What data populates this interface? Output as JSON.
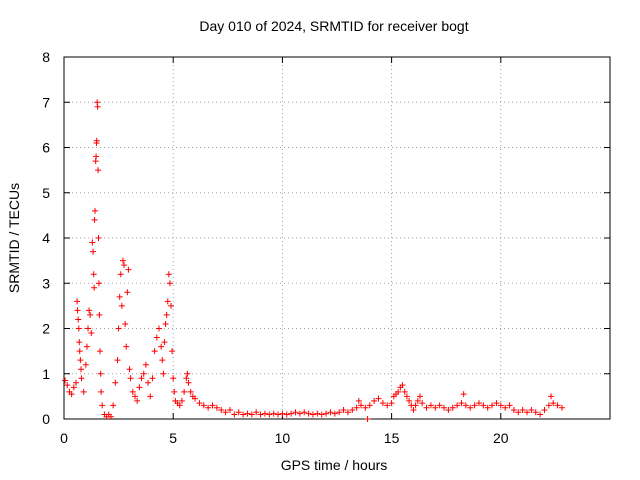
{
  "chart_data": {
    "type": "scatter",
    "title": "Day 010 of 2024, SRMTID for receiver bogt",
    "xlabel": "GPS time / hours",
    "ylabel": "SRMTID / TECUs",
    "xlim": [
      0,
      25
    ],
    "ylim": [
      0,
      8
    ],
    "xticks": [
      0,
      5,
      10,
      15,
      20
    ],
    "yticks": [
      0,
      1,
      2,
      3,
      4,
      5,
      6,
      7,
      8
    ],
    "xtick_labels": [
      "0",
      "5",
      "10",
      "15",
      "20"
    ],
    "ytick_labels": [
      "0",
      "1",
      "2",
      "3",
      "4",
      "5",
      "6",
      "7",
      "8"
    ],
    "grid": true,
    "marker": "+",
    "color": "#ff0000",
    "series": [
      {
        "name": "SRMTID",
        "points": [
          [
            0.05,
            0.85
          ],
          [
            0.15,
            0.75
          ],
          [
            0.25,
            0.6
          ],
          [
            0.35,
            0.55
          ],
          [
            0.45,
            0.7
          ],
          [
            0.55,
            0.8
          ],
          [
            0.6,
            2.6
          ],
          [
            0.62,
            2.4
          ],
          [
            0.65,
            2.2
          ],
          [
            0.68,
            2.0
          ],
          [
            0.7,
            1.7
          ],
          [
            0.72,
            1.5
          ],
          [
            0.75,
            1.3
          ],
          [
            0.78,
            1.1
          ],
          [
            0.8,
            0.9
          ],
          [
            0.9,
            0.6
          ],
          [
            1.0,
            1.2
          ],
          [
            1.05,
            1.6
          ],
          [
            1.1,
            2.0
          ],
          [
            1.15,
            2.4
          ],
          [
            1.2,
            2.3
          ],
          [
            1.25,
            1.9
          ],
          [
            1.3,
            3.9
          ],
          [
            1.33,
            3.7
          ],
          [
            1.36,
            3.2
          ],
          [
            1.38,
            2.9
          ],
          [
            1.4,
            4.4
          ],
          [
            1.42,
            4.6
          ],
          [
            1.45,
            5.7
          ],
          [
            1.47,
            5.8
          ],
          [
            1.49,
            6.1
          ],
          [
            1.5,
            6.15
          ],
          [
            1.52,
            7.0
          ],
          [
            1.54,
            6.9
          ],
          [
            1.56,
            5.5
          ],
          [
            1.58,
            4.0
          ],
          [
            1.6,
            3.0
          ],
          [
            1.62,
            2.3
          ],
          [
            1.65,
            1.5
          ],
          [
            1.68,
            1.0
          ],
          [
            1.7,
            0.6
          ],
          [
            1.75,
            0.3
          ],
          [
            1.85,
            0.1
          ],
          [
            1.95,
            0.05
          ],
          [
            2.05,
            0.1
          ],
          [
            2.15,
            0.05
          ],
          [
            2.25,
            0.3
          ],
          [
            2.35,
            0.8
          ],
          [
            2.45,
            1.3
          ],
          [
            2.5,
            2.0
          ],
          [
            2.55,
            2.7
          ],
          [
            2.6,
            3.2
          ],
          [
            2.65,
            2.5
          ],
          [
            2.7,
            3.5
          ],
          [
            2.75,
            3.4
          ],
          [
            2.8,
            2.1
          ],
          [
            2.85,
            1.6
          ],
          [
            2.9,
            2.8
          ],
          [
            2.95,
            3.3
          ],
          [
            3.0,
            1.1
          ],
          [
            3.05,
            0.9
          ],
          [
            3.15,
            0.6
          ],
          [
            3.25,
            0.5
          ],
          [
            3.35,
            0.4
          ],
          [
            3.45,
            0.7
          ],
          [
            3.55,
            0.9
          ],
          [
            3.65,
            1.0
          ],
          [
            3.75,
            1.2
          ],
          [
            3.85,
            0.8
          ],
          [
            3.95,
            0.5
          ],
          [
            4.05,
            0.9
          ],
          [
            4.15,
            1.5
          ],
          [
            4.25,
            1.8
          ],
          [
            4.35,
            2.0
          ],
          [
            4.45,
            1.6
          ],
          [
            4.5,
            1.3
          ],
          [
            4.55,
            1.0
          ],
          [
            4.6,
            1.7
          ],
          [
            4.65,
            2.1
          ],
          [
            4.7,
            2.3
          ],
          [
            4.75,
            2.6
          ],
          [
            4.8,
            3.2
          ],
          [
            4.85,
            3.0
          ],
          [
            4.9,
            2.5
          ],
          [
            4.95,
            1.5
          ],
          [
            5.0,
            0.9
          ],
          [
            5.05,
            0.6
          ],
          [
            5.1,
            0.4
          ],
          [
            5.2,
            0.35
          ],
          [
            5.3,
            0.3
          ],
          [
            5.4,
            0.4
          ],
          [
            5.5,
            0.6
          ],
          [
            5.6,
            0.9
          ],
          [
            5.65,
            1.0
          ],
          [
            5.7,
            0.8
          ],
          [
            5.8,
            0.6
          ],
          [
            5.9,
            0.5
          ],
          [
            6.0,
            0.45
          ],
          [
            6.2,
            0.35
          ],
          [
            6.4,
            0.3
          ],
          [
            6.6,
            0.25
          ],
          [
            6.8,
            0.3
          ],
          [
            7.0,
            0.25
          ],
          [
            7.2,
            0.2
          ],
          [
            7.4,
            0.15
          ],
          [
            7.6,
            0.2
          ],
          [
            7.8,
            0.1
          ],
          [
            8.0,
            0.15
          ],
          [
            8.2,
            0.1
          ],
          [
            8.4,
            0.12
          ],
          [
            8.6,
            0.1
          ],
          [
            8.8,
            0.15
          ],
          [
            9.0,
            0.1
          ],
          [
            9.2,
            0.12
          ],
          [
            9.4,
            0.1
          ],
          [
            9.6,
            0.12
          ],
          [
            9.8,
            0.1
          ],
          [
            10.0,
            0.12
          ],
          [
            10.2,
            0.1
          ],
          [
            10.4,
            0.12
          ],
          [
            10.6,
            0.15
          ],
          [
            10.8,
            0.12
          ],
          [
            11.0,
            0.15
          ],
          [
            11.2,
            0.12
          ],
          [
            11.4,
            0.1
          ],
          [
            11.6,
            0.12
          ],
          [
            11.8,
            0.1
          ],
          [
            12.0,
            0.12
          ],
          [
            12.2,
            0.15
          ],
          [
            12.4,
            0.12
          ],
          [
            12.6,
            0.15
          ],
          [
            12.8,
            0.2
          ],
          [
            13.0,
            0.15
          ],
          [
            13.2,
            0.2
          ],
          [
            13.4,
            0.25
          ],
          [
            13.5,
            0.4
          ],
          [
            13.6,
            0.3
          ],
          [
            13.8,
            0.25
          ],
          [
            13.9,
            0.0
          ],
          [
            14.0,
            0.3
          ],
          [
            14.2,
            0.4
          ],
          [
            14.4,
            0.45
          ],
          [
            14.6,
            0.35
          ],
          [
            14.8,
            0.3
          ],
          [
            15.0,
            0.35
          ],
          [
            15.1,
            0.5
          ],
          [
            15.2,
            0.55
          ],
          [
            15.3,
            0.6
          ],
          [
            15.4,
            0.7
          ],
          [
            15.5,
            0.75
          ],
          [
            15.6,
            0.6
          ],
          [
            15.7,
            0.5
          ],
          [
            15.8,
            0.4
          ],
          [
            15.9,
            0.3
          ],
          [
            16.0,
            0.2
          ],
          [
            16.1,
            0.3
          ],
          [
            16.2,
            0.4
          ],
          [
            16.3,
            0.5
          ],
          [
            16.4,
            0.35
          ],
          [
            16.6,
            0.25
          ],
          [
            16.8,
            0.3
          ],
          [
            17.0,
            0.25
          ],
          [
            17.2,
            0.3
          ],
          [
            17.4,
            0.25
          ],
          [
            17.6,
            0.2
          ],
          [
            17.8,
            0.25
          ],
          [
            18.0,
            0.3
          ],
          [
            18.2,
            0.35
          ],
          [
            18.3,
            0.55
          ],
          [
            18.4,
            0.3
          ],
          [
            18.6,
            0.25
          ],
          [
            18.8,
            0.3
          ],
          [
            19.0,
            0.35
          ],
          [
            19.2,
            0.3
          ],
          [
            19.4,
            0.25
          ],
          [
            19.6,
            0.3
          ],
          [
            19.8,
            0.35
          ],
          [
            20.0,
            0.3
          ],
          [
            20.2,
            0.25
          ],
          [
            20.4,
            0.3
          ],
          [
            20.6,
            0.2
          ],
          [
            20.8,
            0.15
          ],
          [
            21.0,
            0.2
          ],
          [
            21.2,
            0.15
          ],
          [
            21.4,
            0.2
          ],
          [
            21.6,
            0.15
          ],
          [
            21.8,
            0.1
          ],
          [
            22.0,
            0.2
          ],
          [
            22.2,
            0.3
          ],
          [
            22.3,
            0.5
          ],
          [
            22.4,
            0.35
          ],
          [
            22.6,
            0.3
          ],
          [
            22.8,
            0.25
          ]
        ]
      }
    ]
  }
}
